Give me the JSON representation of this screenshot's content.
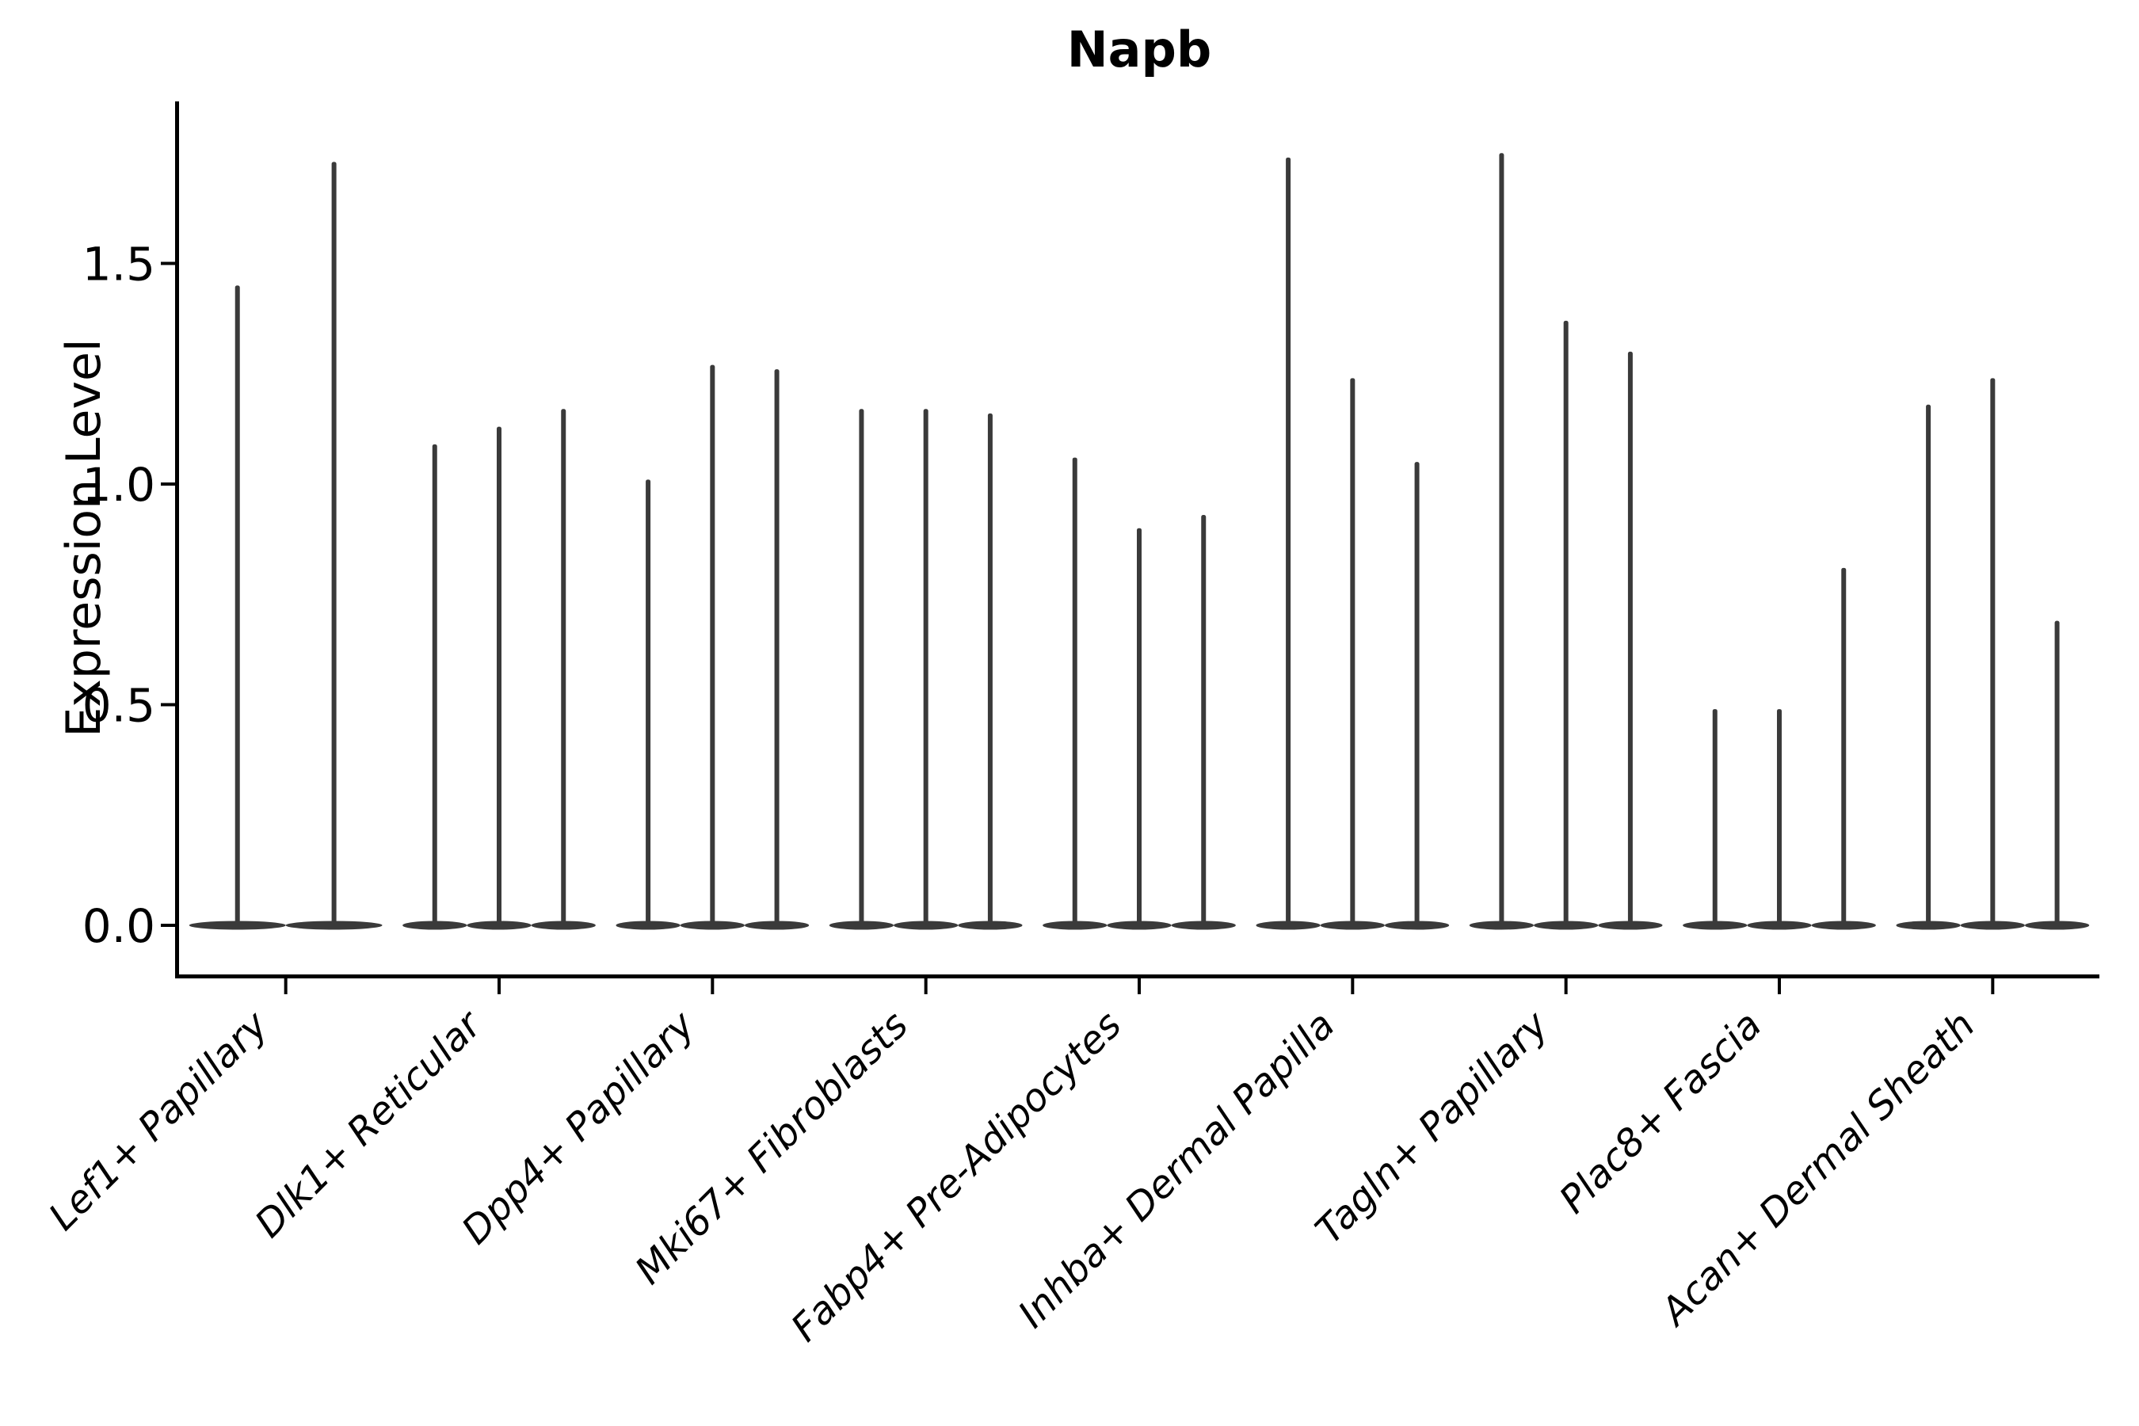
{
  "title": "Napb",
  "chart_data": {
    "type": "violin",
    "title": "Napb",
    "xlabel": "",
    "ylabel": "Expression Level",
    "yticks": [
      "0.0",
      "0.5",
      "1.0",
      "1.5"
    ],
    "ytick_values": [
      0.0,
      0.5,
      1.0,
      1.5
    ],
    "ylim": [
      -0.11,
      1.87
    ],
    "grid": false,
    "legend_position": "none",
    "categories": [
      "Lef1+ Papillary",
      "Dlk1+ Reticular",
      "Dpp4+ Papillary",
      "Mki67+ Fibroblasts",
      "Fabp4+ Pre-Adipocytes",
      "Inhba+ Dermal Papilla",
      "Tagln+ Papillary",
      "Plac8+ Fascia",
      "Acan+ Dermal Sheath"
    ],
    "series": [
      {
        "name": "Lef1+ Papillary",
        "violin_max_values": [
          1.45,
          1.73
        ]
      },
      {
        "name": "Dlk1+ Reticular",
        "violin_max_values": [
          1.09,
          1.13,
          1.17
        ]
      },
      {
        "name": "Dpp4+ Papillary",
        "violin_max_values": [
          1.01,
          1.27,
          1.26
        ]
      },
      {
        "name": "Mki67+ Fibroblasts",
        "violin_max_values": [
          1.17,
          1.17,
          1.16
        ]
      },
      {
        "name": "Fabp4+ Pre-Adipocytes",
        "violin_max_values": [
          1.06,
          0.9,
          0.93
        ]
      },
      {
        "name": "Inhba+ Dermal Papilla",
        "violin_max_values": [
          1.74,
          1.24,
          1.05
        ]
      },
      {
        "name": "Tagln+ Papillary",
        "violin_max_values": [
          1.75,
          1.37,
          1.3
        ]
      },
      {
        "name": "Plac8+ Fascia",
        "violin_max_values": [
          0.49,
          0.49,
          0.81
        ]
      },
      {
        "name": "Acan+ Dermal Sheath",
        "violin_max_values": [
          1.18,
          1.24,
          0.69
        ]
      }
    ],
    "violin_baseline_value": 0.0,
    "colors": {
      "violin": "#3a3a3a",
      "axis": "#000000",
      "text": "#000000",
      "background": "#ffffff"
    }
  }
}
